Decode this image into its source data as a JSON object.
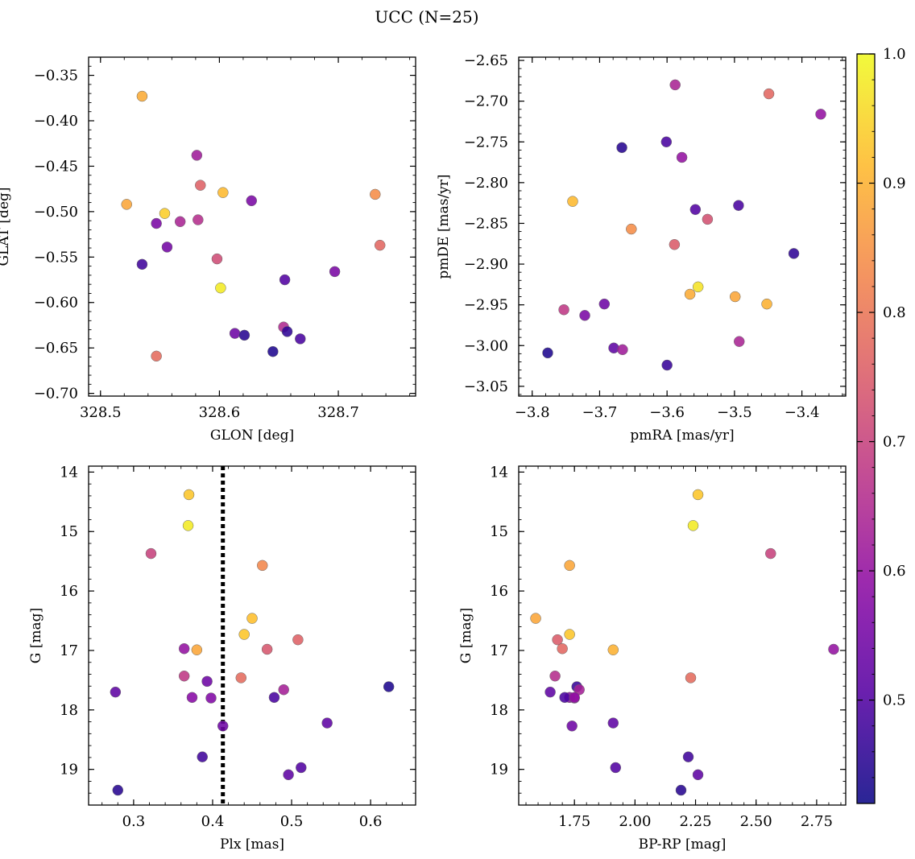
{
  "figure_title": "UCC (N=25)",
  "colorbar": {
    "min": 0.42,
    "max": 1.0,
    "ticks": [
      0.5,
      0.6,
      0.7,
      0.8,
      0.9,
      1.0
    ],
    "tick_labels": [
      "0.5",
      "0.6",
      "0.7",
      "0.8",
      "0.9",
      "1.0"
    ],
    "colormap": "plasma"
  },
  "chart_data": [
    {
      "id": "glon-glat",
      "type": "scatter",
      "xlabel": "GLON [deg]",
      "ylabel": "GLAT [deg]",
      "xlim": [
        328.49,
        328.765
      ],
      "ylim": [
        -0.703,
        -0.33
      ],
      "y_inverted": false,
      "xticks": [
        328.5,
        328.6,
        328.7
      ],
      "xtick_labels": [
        "328.5",
        "328.6",
        "328.7"
      ],
      "yticks": [
        -0.35,
        -0.4,
        -0.45,
        -0.5,
        -0.55,
        -0.6,
        -0.65,
        -0.7
      ],
      "ytick_labels": [
        "−0.35",
        "−0.40",
        "−0.45",
        "−0.50",
        "−0.55",
        "−0.60",
        "−0.65",
        "−0.70"
      ],
      "x": [
        328.535,
        328.522,
        328.554,
        328.603,
        328.731,
        328.581,
        328.584,
        328.627,
        328.547,
        328.567,
        328.582,
        328.556,
        328.535,
        328.735,
        328.598,
        328.601,
        328.655,
        328.697,
        328.654,
        328.613,
        328.621,
        328.657,
        328.645,
        328.668,
        328.547
      ],
      "y": [
        -0.373,
        -0.492,
        -0.502,
        -0.479,
        -0.481,
        -0.438,
        -0.471,
        -0.488,
        -0.513,
        -0.511,
        -0.509,
        -0.539,
        -0.558,
        -0.537,
        -0.552,
        -0.584,
        -0.575,
        -0.566,
        -0.627,
        -0.634,
        -0.636,
        -0.632,
        -0.654,
        -0.64,
        -0.659
      ],
      "color_values": [
        0.89,
        0.88,
        0.94,
        0.91,
        0.84,
        0.62,
        0.76,
        0.56,
        0.56,
        0.64,
        0.66,
        0.55,
        0.48,
        0.77,
        0.72,
        0.98,
        0.5,
        0.56,
        0.65,
        0.54,
        0.45,
        0.46,
        0.44,
        0.49,
        0.78
      ]
    },
    {
      "id": "pmra-pmde",
      "type": "scatter",
      "xlabel": "pmRA [mas/yr]",
      "ylabel": "pmDE [mas/yr]",
      "xlim": [
        -3.82,
        -3.335
      ],
      "ylim": [
        -3.062,
        -2.646
      ],
      "y_inverted": false,
      "xticks": [
        -3.8,
        -3.7,
        -3.6,
        -3.5,
        -3.4
      ],
      "xtick_labels": [
        "−3.8",
        "−3.7",
        "−3.6",
        "−3.5",
        "−3.4"
      ],
      "yticks": [
        -2.65,
        -2.7,
        -2.75,
        -2.8,
        -2.85,
        -2.9,
        -2.95,
        -3.0,
        -3.05
      ],
      "ytick_labels": [
        "−2.65",
        "−2.70",
        "−2.75",
        "−2.80",
        "−2.85",
        "−2.90",
        "−2.95",
        "−3.00",
        "−3.05"
      ],
      "x": [
        -3.588,
        -3.449,
        -3.372,
        -3.667,
        -3.601,
        -3.578,
        -3.74,
        -3.558,
        -3.494,
        -3.653,
        -3.589,
        -3.54,
        -3.412,
        -3.554,
        -3.566,
        -3.499,
        -3.452,
        -3.753,
        -3.693,
        -3.722,
        -3.493,
        -3.777,
        -3.679,
        -3.666,
        -3.6
      ],
      "y": [
        -2.68,
        -2.691,
        -2.716,
        -2.757,
        -2.75,
        -2.769,
        -2.823,
        -2.833,
        -2.828,
        -2.857,
        -2.876,
        -2.845,
        -2.887,
        -2.928,
        -2.937,
        -2.94,
        -2.949,
        -2.956,
        -2.949,
        -2.963,
        -2.995,
        -3.009,
        -3.003,
        -3.005,
        -3.024
      ],
      "color_values": [
        0.64,
        0.77,
        0.6,
        0.45,
        0.49,
        0.6,
        0.91,
        0.5,
        0.49,
        0.84,
        0.75,
        0.73,
        0.46,
        0.97,
        0.89,
        0.88,
        0.9,
        0.68,
        0.54,
        0.56,
        0.64,
        0.44,
        0.52,
        0.62,
        0.47
      ]
    },
    {
      "id": "plx-g",
      "type": "scatter",
      "xlabel": "Plx [mas]",
      "ylabel": "G [mag]",
      "xlim": [
        0.243,
        0.657
      ],
      "ylim": [
        13.9,
        19.6
      ],
      "y_inverted": true,
      "xticks": [
        0.3,
        0.4,
        0.5,
        0.6
      ],
      "xtick_labels": [
        "0.3",
        "0.4",
        "0.5",
        "0.6"
      ],
      "yticks": [
        14,
        15,
        16,
        17,
        18,
        19
      ],
      "ytick_labels": [
        "14",
        "15",
        "16",
        "17",
        "18",
        "19"
      ],
      "vline": 0.413,
      "x": [
        0.37,
        0.369,
        0.322,
        0.463,
        0.45,
        0.44,
        0.364,
        0.38,
        0.469,
        0.508,
        0.364,
        0.393,
        0.436,
        0.49,
        0.277,
        0.374,
        0.398,
        0.478,
        0.623,
        0.413,
        0.545,
        0.387,
        0.512,
        0.496,
        0.28
      ],
      "y": [
        14.38,
        14.9,
        15.37,
        15.57,
        16.46,
        16.73,
        16.97,
        16.99,
        16.98,
        16.82,
        17.43,
        17.52,
        17.46,
        17.66,
        17.7,
        17.79,
        17.8,
        17.79,
        17.61,
        18.27,
        18.22,
        18.79,
        18.97,
        19.09,
        19.35
      ],
      "color_values": [
        0.93,
        0.98,
        0.7,
        0.83,
        0.92,
        0.93,
        0.6,
        0.88,
        0.74,
        0.76,
        0.68,
        0.54,
        0.78,
        0.63,
        0.52,
        0.58,
        0.57,
        0.49,
        0.44,
        0.54,
        0.52,
        0.48,
        0.5,
        0.52,
        0.45
      ]
    },
    {
      "id": "bprp-g",
      "type": "scatter",
      "xlabel": "BP-RP [mag]",
      "ylabel": "G [mag]",
      "xlim": [
        1.52,
        2.87
      ],
      "ylim": [
        13.9,
        19.6
      ],
      "y_inverted": true,
      "xticks": [
        1.75,
        2.0,
        2.25,
        2.5,
        2.75
      ],
      "xtick_labels": [
        "1.75",
        "2.00",
        "2.25",
        "2.50",
        "2.75"
      ],
      "yticks": [
        14,
        15,
        16,
        17,
        18,
        19
      ],
      "ytick_labels": [
        "14",
        "15",
        "16",
        "17",
        "18",
        "19"
      ],
      "x": [
        2.26,
        2.24,
        2.56,
        1.73,
        1.59,
        1.73,
        1.91,
        1.68,
        1.7,
        2.82,
        1.67,
        1.76,
        2.23,
        1.77,
        1.65,
        1.73,
        1.75,
        1.71,
        1.91,
        1.74,
        2.22,
        1.92,
        2.26,
        2.19,
        1.75
      ],
      "y": [
        14.38,
        14.9,
        15.37,
        15.57,
        16.46,
        16.73,
        16.99,
        16.82,
        16.97,
        16.98,
        17.43,
        17.61,
        17.46,
        17.66,
        17.7,
        17.79,
        17.8,
        17.79,
        18.22,
        18.27,
        18.79,
        18.97,
        19.09,
        19.35,
        17.79
      ],
      "color_values": [
        0.93,
        0.98,
        0.7,
        0.88,
        0.88,
        0.93,
        0.9,
        0.75,
        0.77,
        0.6,
        0.66,
        0.47,
        0.78,
        0.63,
        0.52,
        0.58,
        0.57,
        0.49,
        0.52,
        0.54,
        0.48,
        0.5,
        0.52,
        0.45,
        0.6
      ]
    }
  ]
}
